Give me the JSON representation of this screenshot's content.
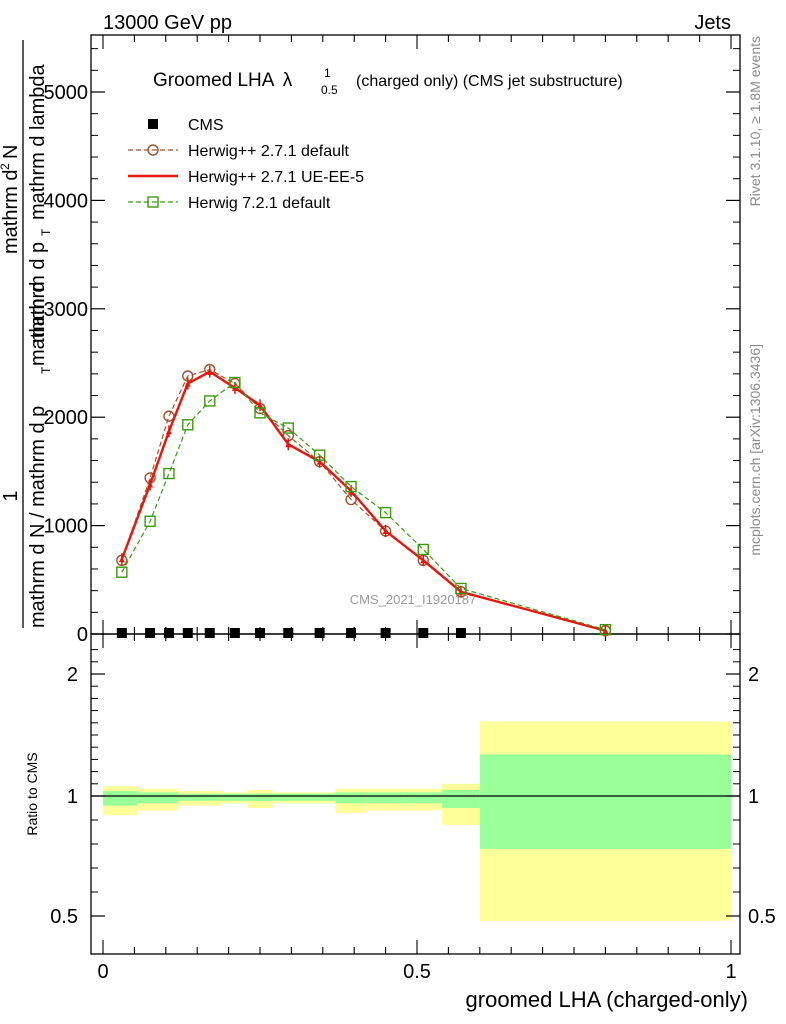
{
  "header": {
    "left": "13000 GeV pp",
    "right": "Jets"
  },
  "main_title": {
    "prefix": "Groomed LHA",
    "symbol": "λ",
    "sup": "1",
    "sub": "0.5",
    "suffix": "(charged only) (CMS jet substructure)"
  },
  "ylabel_upper": {
    "numerator_one": "1",
    "denominator": "mathrm d N / mathrm d p",
    "den_sub": "T",
    "mid": "mathrm d",
    "right_top": "mathrm d",
    "right_sup": "2",
    "right_N": "N",
    "right_bottom": "mathrm d p",
    "right_bottom_sub": "T",
    "right_bottom_tail": "mathrm d lambda"
  },
  "side_labels": {
    "rivet": "Rivet 3.1.10, ≥ 1.8M events",
    "mcplots": "mcplots.cern.ch [arXiv:1306.3436]"
  },
  "watermark": "CMS_2021_I1920187",
  "legend": [
    {
      "label": "CMS",
      "color": "#000000",
      "marker": "square-filled",
      "line": "none"
    },
    {
      "label": "Herwig++ 2.7.1 default",
      "color": "#a0522d",
      "marker": "circle-open",
      "line": "dashed"
    },
    {
      "label": "Herwig++ 2.7.1 UE-EE-5",
      "color": "#e8150d",
      "marker": "triangle-filled",
      "line": "solid"
    },
    {
      "label": "Herwig 7.2.1 default",
      "color": "#3a9a0e",
      "marker": "square-open",
      "line": "dashed"
    }
  ],
  "colors": {
    "cms": "#000000",
    "herwigpp_default": "#a0522d",
    "herwigpp_ueee5": "#e8150d",
    "herwig7": "#3a9a0e",
    "band_outer": "#ffff99",
    "band_inner": "#99ff99"
  },
  "ratio_ylabel": "Ratio to CMS",
  "xlabel": "groomed LHA (charged-only)",
  "chart_data": [
    {
      "type": "line",
      "panel": "main",
      "xlim": [
        -0.02,
        1.0
      ],
      "ylim": [
        0,
        5500
      ],
      "x_ticks": [
        0,
        0.5,
        1
      ],
      "y_ticks": [
        0,
        1000,
        2000,
        3000,
        4000,
        5000
      ],
      "y_tick_labels": [
        "0",
        "1000",
        "2000",
        "3000",
        "4000",
        "5000"
      ],
      "series": [
        {
          "name": "CMS",
          "x": [
            0.03,
            0.075,
            0.105,
            0.135,
            0.17,
            0.21,
            0.25,
            0.295,
            0.345,
            0.395,
            0.45,
            0.51,
            0.57
          ],
          "values": [
            0,
            0,
            0,
            0,
            0,
            0,
            0,
            0,
            0,
            0,
            0,
            0,
            0
          ]
        },
        {
          "name": "Herwig++ 2.7.1 default",
          "x": [
            0.03,
            0.075,
            0.105,
            0.135,
            0.17,
            0.21,
            0.25,
            0.295,
            0.345,
            0.395,
            0.45,
            0.51,
            0.57,
            0.8
          ],
          "values": [
            680,
            1440,
            2010,
            2380,
            2440,
            2310,
            2080,
            1830,
            1590,
            1240,
            950,
            680,
            390,
            30
          ]
        },
        {
          "name": "Herwig++ 2.7.1 UE-EE-5",
          "x": [
            0.03,
            0.075,
            0.105,
            0.135,
            0.17,
            0.21,
            0.25,
            0.295,
            0.345,
            0.395,
            0.45,
            0.51,
            0.57,
            0.8
          ],
          "values": [
            690,
            1380,
            1870,
            2310,
            2420,
            2270,
            2110,
            1750,
            1590,
            1320,
            950,
            680,
            390,
            30
          ]
        },
        {
          "name": "Herwig 7.2.1 default",
          "x": [
            0.03,
            0.075,
            0.105,
            0.135,
            0.17,
            0.21,
            0.25,
            0.295,
            0.345,
            0.395,
            0.45,
            0.51,
            0.57,
            0.8
          ],
          "values": [
            570,
            1040,
            1480,
            1930,
            2150,
            2320,
            2040,
            1900,
            1650,
            1360,
            1120,
            780,
            420,
            40
          ]
        }
      ]
    },
    {
      "type": "area",
      "panel": "ratio",
      "xlim": [
        -0.02,
        1.0
      ],
      "ylim": [
        0.35,
        2.3
      ],
      "x_ticks": [
        0,
        0.5,
        1
      ],
      "x_tick_labels": [
        "0",
        "0.5",
        "1"
      ],
      "y_ticks": [
        0.5,
        1,
        2
      ],
      "y_tick_labels": [
        "0.5",
        "1",
        "2"
      ],
      "bins": [
        {
          "lo": 0.0,
          "hi": 0.055,
          "inner": [
            0.96,
            1.04
          ],
          "outer": [
            0.92,
            1.08
          ]
        },
        {
          "lo": 0.055,
          "hi": 0.09,
          "inner": [
            0.97,
            1.03
          ],
          "outer": [
            0.94,
            1.06
          ]
        },
        {
          "lo": 0.09,
          "hi": 0.12,
          "inner": [
            0.97,
            1.03
          ],
          "outer": [
            0.94,
            1.06
          ]
        },
        {
          "lo": 0.12,
          "hi": 0.15,
          "inner": [
            0.98,
            1.02
          ],
          "outer": [
            0.96,
            1.04
          ]
        },
        {
          "lo": 0.15,
          "hi": 0.19,
          "inner": [
            0.98,
            1.02
          ],
          "outer": [
            0.96,
            1.04
          ]
        },
        {
          "lo": 0.19,
          "hi": 0.23,
          "inner": [
            0.98,
            1.02
          ],
          "outer": [
            0.97,
            1.03
          ]
        },
        {
          "lo": 0.23,
          "hi": 0.27,
          "inner": [
            0.98,
            1.02
          ],
          "outer": [
            0.95,
            1.05
          ]
        },
        {
          "lo": 0.27,
          "hi": 0.32,
          "inner": [
            0.98,
            1.02
          ],
          "outer": [
            0.97,
            1.03
          ]
        },
        {
          "lo": 0.32,
          "hi": 0.37,
          "inner": [
            0.98,
            1.02
          ],
          "outer": [
            0.97,
            1.03
          ]
        },
        {
          "lo": 0.37,
          "hi": 0.42,
          "inner": [
            0.97,
            1.03
          ],
          "outer": [
            0.93,
            1.06
          ]
        },
        {
          "lo": 0.42,
          "hi": 0.48,
          "inner": [
            0.97,
            1.03
          ],
          "outer": [
            0.94,
            1.06
          ]
        },
        {
          "lo": 0.48,
          "hi": 0.54,
          "inner": [
            0.97,
            1.03
          ],
          "outer": [
            0.94,
            1.06
          ]
        },
        {
          "lo": 0.54,
          "hi": 0.6,
          "inner": [
            0.95,
            1.05
          ],
          "outer": [
            0.88,
            1.1
          ]
        },
        {
          "lo": 0.6,
          "hi": 1.0,
          "inner": [
            0.78,
            1.34
          ],
          "outer": [
            0.48,
            1.61
          ]
        }
      ],
      "reference_line": 1
    }
  ]
}
